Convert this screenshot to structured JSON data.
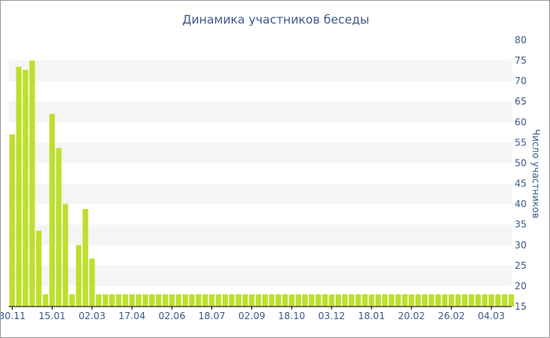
{
  "chart_data": {
    "type": "bar",
    "title": "Динамика участников беседы",
    "ylabel": "Число участников",
    "xlabel": "",
    "ylim": [
      15,
      80
    ],
    "y_ticks": [
      15,
      20,
      25,
      30,
      35,
      40,
      45,
      50,
      55,
      60,
      65,
      70,
      75,
      80
    ],
    "grid": "alternating horizontal bands",
    "legend": "none",
    "colors": {
      "bar": "#bedf2e",
      "band": "#f5f5f5",
      "text": "#3f5a8c",
      "axis": "#000000"
    },
    "x_tick_labels": [
      "30.11",
      "15.01",
      "02.03",
      "17.04",
      "02.06",
      "18.07",
      "02.09",
      "18.10",
      "03.12",
      "18.01",
      "20.02",
      "26.02",
      "04.03"
    ],
    "x_tick_positions": [
      0,
      6,
      12,
      18,
      24,
      30,
      36,
      42,
      48,
      54,
      60,
      66,
      72
    ],
    "values": [
      57,
      73.5,
      72.7,
      75,
      33.5,
      18,
      62,
      53.7,
      40,
      18,
      30,
      38.8,
      26.7,
      18,
      18,
      18,
      18,
      18,
      18,
      18,
      18,
      18,
      18,
      18,
      18,
      18,
      18,
      18,
      18,
      18,
      18,
      18,
      18,
      18,
      18,
      18,
      18,
      18,
      18,
      18,
      18,
      18,
      18,
      18,
      18,
      18,
      18,
      18,
      18,
      18,
      18,
      18,
      18,
      18,
      18,
      18,
      18,
      18,
      18,
      18,
      18,
      18,
      18,
      18,
      18,
      18,
      18,
      18,
      18,
      18,
      18,
      18,
      18,
      18,
      18,
      18
    ]
  }
}
